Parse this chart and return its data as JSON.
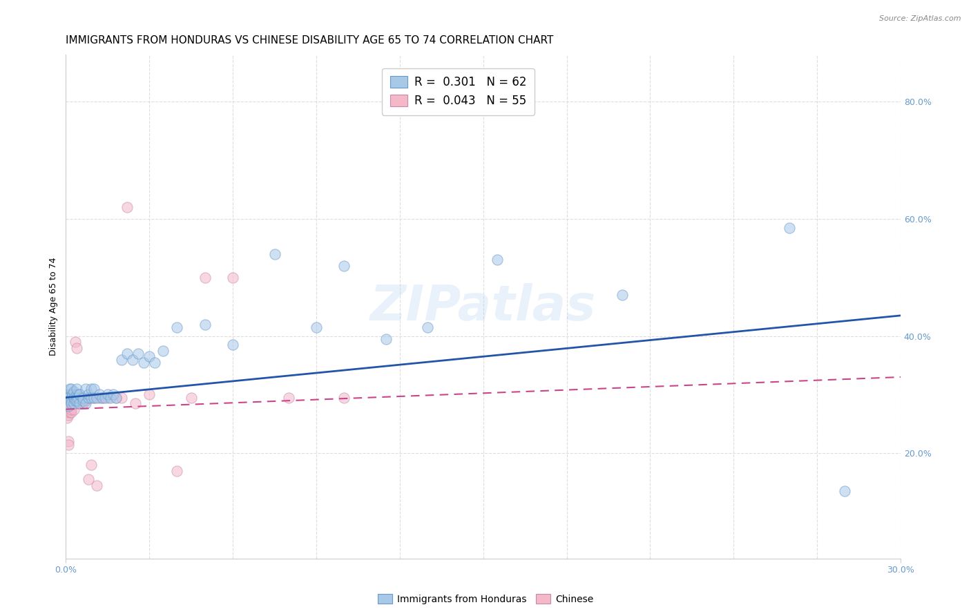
{
  "title": "IMMIGRANTS FROM HONDURAS VS CHINESE DISABILITY AGE 65 TO 74 CORRELATION CHART",
  "source": "Source: ZipAtlas.com",
  "ylabel": "Disability Age 65 to 74",
  "xlim": [
    0.0,
    0.3
  ],
  "ylim": [
    0.02,
    0.88
  ],
  "yticks_right": [
    0.2,
    0.4,
    0.6,
    0.8
  ],
  "ytick_labels_right": [
    "20.0%",
    "40.0%",
    "60.0%",
    "80.0%"
  ],
  "xtick_labels": [
    "0.0%",
    "30.0%"
  ],
  "xtick_positions": [
    0.0,
    0.3
  ],
  "legend_top": [
    {
      "label": "R =  0.301   N = 62",
      "color": "#a8c8e8"
    },
    {
      "label": "R =  0.043   N = 55",
      "color": "#f4b8c8"
    }
  ],
  "legend_bottom": [
    "Immigrants from Honduras",
    "Chinese"
  ],
  "watermark": "ZIPatlas",
  "blue_scatter_x": [
    0.0005,
    0.001,
    0.001,
    0.001,
    0.0015,
    0.0015,
    0.002,
    0.002,
    0.002,
    0.002,
    0.0025,
    0.003,
    0.003,
    0.003,
    0.003,
    0.0035,
    0.004,
    0.004,
    0.004,
    0.004,
    0.0045,
    0.005,
    0.005,
    0.005,
    0.006,
    0.006,
    0.007,
    0.007,
    0.008,
    0.008,
    0.009,
    0.009,
    0.01,
    0.01,
    0.011,
    0.012,
    0.013,
    0.014,
    0.015,
    0.016,
    0.017,
    0.018,
    0.02,
    0.022,
    0.024,
    0.026,
    0.028,
    0.03,
    0.032,
    0.035,
    0.04,
    0.05,
    0.06,
    0.075,
    0.09,
    0.1,
    0.115,
    0.13,
    0.155,
    0.2,
    0.26,
    0.28
  ],
  "blue_scatter_y": [
    0.295,
    0.3,
    0.28,
    0.295,
    0.29,
    0.31,
    0.295,
    0.29,
    0.31,
    0.285,
    0.3,
    0.295,
    0.285,
    0.305,
    0.295,
    0.29,
    0.3,
    0.295,
    0.29,
    0.31,
    0.295,
    0.3,
    0.285,
    0.3,
    0.29,
    0.295,
    0.285,
    0.31,
    0.295,
    0.3,
    0.31,
    0.295,
    0.295,
    0.31,
    0.295,
    0.3,
    0.295,
    0.295,
    0.3,
    0.295,
    0.3,
    0.295,
    0.36,
    0.37,
    0.36,
    0.37,
    0.355,
    0.365,
    0.355,
    0.375,
    0.415,
    0.42,
    0.385,
    0.54,
    0.415,
    0.52,
    0.395,
    0.415,
    0.53,
    0.47,
    0.585,
    0.135
  ],
  "pink_scatter_x": [
    0.0003,
    0.0005,
    0.0005,
    0.001,
    0.001,
    0.001,
    0.001,
    0.001,
    0.0015,
    0.0015,
    0.0015,
    0.002,
    0.002,
    0.002,
    0.002,
    0.002,
    0.0025,
    0.003,
    0.003,
    0.003,
    0.003,
    0.003,
    0.0035,
    0.004,
    0.004,
    0.004,
    0.004,
    0.004,
    0.0045,
    0.005,
    0.005,
    0.005,
    0.006,
    0.006,
    0.007,
    0.007,
    0.008,
    0.008,
    0.009,
    0.01,
    0.011,
    0.012,
    0.013,
    0.015,
    0.018,
    0.02,
    0.022,
    0.025,
    0.03,
    0.04,
    0.045,
    0.05,
    0.06,
    0.08,
    0.1
  ],
  "pink_scatter_y": [
    0.27,
    0.26,
    0.28,
    0.295,
    0.28,
    0.265,
    0.22,
    0.215,
    0.3,
    0.285,
    0.27,
    0.295,
    0.285,
    0.27,
    0.3,
    0.275,
    0.29,
    0.285,
    0.295,
    0.275,
    0.29,
    0.29,
    0.39,
    0.285,
    0.295,
    0.295,
    0.38,
    0.285,
    0.295,
    0.29,
    0.285,
    0.295,
    0.285,
    0.295,
    0.29,
    0.29,
    0.295,
    0.155,
    0.18,
    0.295,
    0.145,
    0.295,
    0.295,
    0.295,
    0.295,
    0.295,
    0.62,
    0.285,
    0.3,
    0.17,
    0.295,
    0.5,
    0.5,
    0.295,
    0.295
  ],
  "blue_line_x": [
    0.0,
    0.3
  ],
  "blue_line_y": [
    0.295,
    0.435
  ],
  "pink_line_x": [
    0.0,
    0.3
  ],
  "pink_line_y": [
    0.275,
    0.33
  ],
  "blue_scatter_color": "#a8c8e8",
  "blue_edge_color": "#6699cc",
  "pink_scatter_color": "#f4b8c8",
  "pink_edge_color": "#cc88aa",
  "blue_line_color": "#2255aa",
  "pink_line_color": "#cc4488",
  "background_color": "#ffffff",
  "grid_color": "#dddddd",
  "grid_style": "--",
  "title_fontsize": 11,
  "label_fontsize": 9,
  "tick_fontsize": 9,
  "source_fontsize": 8,
  "watermark_fontsize": 52,
  "watermark_alpha": 0.25,
  "watermark_color": "#aaccee",
  "axis_color": "#6699cc",
  "scatter_size": 120,
  "scatter_alpha": 0.55
}
